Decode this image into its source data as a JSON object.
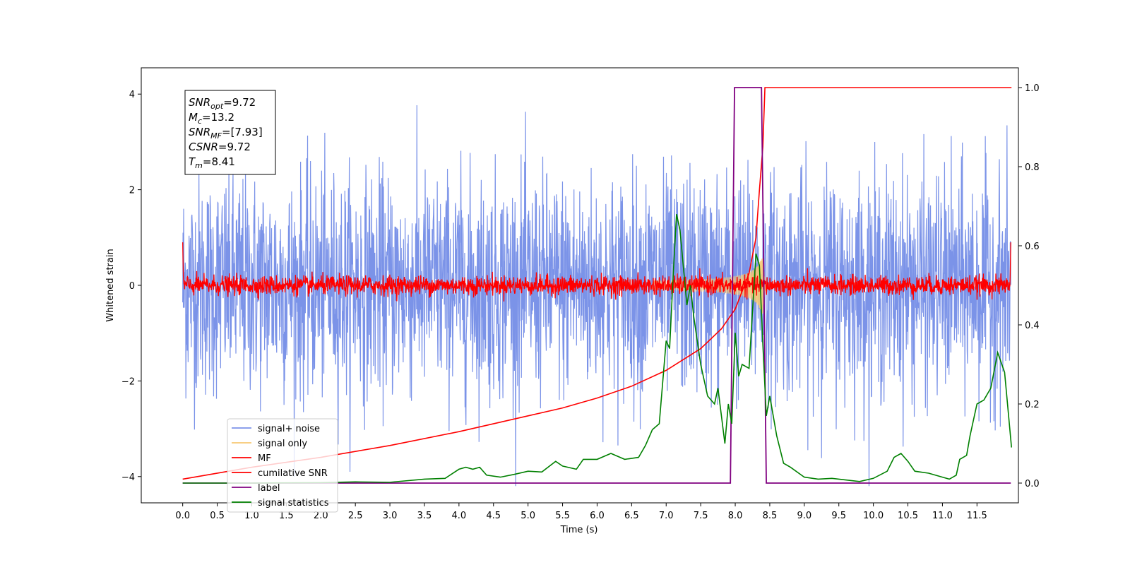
{
  "chart_data": {
    "type": "line",
    "xlabel": "Time (s)",
    "ylabel": "Whitened strain",
    "xlim": [
      -0.6,
      12.1
    ],
    "ylim": [
      -4.55,
      4.55
    ],
    "y2lim": [
      -0.05,
      1.05
    ],
    "x_ticks": [
      "0.0",
      "0.5",
      "1.0",
      "1.5",
      "2.0",
      "2.5",
      "3.0",
      "3.5",
      "4.0",
      "4.5",
      "5.0",
      "5.5",
      "6.0",
      "6.5",
      "7.0",
      "7.5",
      "8.0",
      "8.5",
      "9.0",
      "9.5",
      "10.0",
      "10.5",
      "11.0",
      "11.5"
    ],
    "y_ticks": [
      "4",
      "2",
      "0",
      "−2",
      "−4"
    ],
    "y2_ticks": [
      "1.0",
      "0.8",
      "0.6",
      "0.4",
      "0.2",
      "0.0"
    ],
    "annotation": {
      "lines": [
        {
          "var": "SNR",
          "sub": "opt",
          "value": "=9.72"
        },
        {
          "var": "M",
          "sub": "c",
          "value": "=13.2"
        },
        {
          "var": "SNR",
          "sub": "MF",
          "value": "=[7.93]"
        },
        {
          "var": "CSNR",
          "sub": "",
          "value": "=9.72"
        },
        {
          "var": "T",
          "sub": "m",
          "value": "=8.41"
        }
      ]
    },
    "legend": {
      "placement": "lower-left",
      "entries": [
        "signal+ noise",
        "signal only",
        "MF",
        "cumilative SNR",
        "label",
        "signal statistics"
      ]
    },
    "colors": {
      "signal_noise": "#7b93e8",
      "signal_only": "#f7c873",
      "mf": "#ff0000",
      "cumulative_snr": "#ff0000",
      "label": "#800080",
      "signal_statistics": "#008000"
    },
    "series": [
      {
        "name": "signal+ noise",
        "axis": "left",
        "description_range": [
          -4.2,
          4.2
        ],
        "t_start": 0.0,
        "t_end": 11.99
      },
      {
        "name": "signal only",
        "axis": "left",
        "t_peak": 8.4,
        "amplitude_peak": 0.6
      },
      {
        "name": "MF",
        "axis": "left",
        "typical_amplitude": 0.25
      },
      {
        "name": "cumilative SNR",
        "axis": "right",
        "points": [
          [
            0.0,
            0.01
          ],
          [
            1.0,
            0.04
          ],
          [
            2.0,
            0.065
          ],
          [
            3.0,
            0.095
          ],
          [
            4.0,
            0.13
          ],
          [
            5.0,
            0.17
          ],
          [
            5.5,
            0.19
          ],
          [
            6.0,
            0.215
          ],
          [
            6.5,
            0.245
          ],
          [
            7.0,
            0.285
          ],
          [
            7.5,
            0.34
          ],
          [
            7.8,
            0.39
          ],
          [
            8.0,
            0.44
          ],
          [
            8.2,
            0.53
          ],
          [
            8.3,
            0.62
          ],
          [
            8.35,
            0.74
          ],
          [
            8.4,
            0.85
          ],
          [
            8.43,
            1.0
          ],
          [
            12.0,
            1.0
          ]
        ]
      },
      {
        "name": "label",
        "axis": "right",
        "points": [
          [
            0.0,
            0.0
          ],
          [
            7.93,
            0.0
          ],
          [
            7.99,
            1.0
          ],
          [
            8.38,
            1.0
          ],
          [
            8.45,
            0.0
          ],
          [
            11.99,
            0.0
          ]
        ]
      },
      {
        "name": "signal statistics",
        "axis": "right",
        "points": [
          [
            0.0,
            0.0
          ],
          [
            1.0,
            0.0
          ],
          [
            2.0,
            0.001
          ],
          [
            2.5,
            0.003
          ],
          [
            3.0,
            0.002
          ],
          [
            3.5,
            0.01
          ],
          [
            3.8,
            0.012
          ],
          [
            4.0,
            0.035
          ],
          [
            4.1,
            0.04
          ],
          [
            4.2,
            0.035
          ],
          [
            4.3,
            0.04
          ],
          [
            4.4,
            0.02
          ],
          [
            4.6,
            0.015
          ],
          [
            4.8,
            0.022
          ],
          [
            5.0,
            0.03
          ],
          [
            5.2,
            0.028
          ],
          [
            5.4,
            0.055
          ],
          [
            5.5,
            0.043
          ],
          [
            5.7,
            0.035
          ],
          [
            5.8,
            0.06
          ],
          [
            6.0,
            0.06
          ],
          [
            6.2,
            0.075
          ],
          [
            6.4,
            0.06
          ],
          [
            6.6,
            0.065
          ],
          [
            6.7,
            0.095
          ],
          [
            6.8,
            0.135
          ],
          [
            6.9,
            0.15
          ],
          [
            7.0,
            0.36
          ],
          [
            7.05,
            0.34
          ],
          [
            7.1,
            0.52
          ],
          [
            7.15,
            0.68
          ],
          [
            7.2,
            0.64
          ],
          [
            7.3,
            0.45
          ],
          [
            7.35,
            0.5
          ],
          [
            7.4,
            0.42
          ],
          [
            7.5,
            0.3
          ],
          [
            7.6,
            0.22
          ],
          [
            7.7,
            0.2
          ],
          [
            7.75,
            0.24
          ],
          [
            7.85,
            0.1
          ],
          [
            7.9,
            0.2
          ],
          [
            7.95,
            0.15
          ],
          [
            8.0,
            0.38
          ],
          [
            8.05,
            0.27
          ],
          [
            8.1,
            0.3
          ],
          [
            8.2,
            0.29
          ],
          [
            8.3,
            0.58
          ],
          [
            8.35,
            0.55
          ],
          [
            8.4,
            0.35
          ],
          [
            8.45,
            0.17
          ],
          [
            8.5,
            0.22
          ],
          [
            8.6,
            0.12
          ],
          [
            8.7,
            0.05
          ],
          [
            8.8,
            0.04
          ],
          [
            9.0,
            0.015
          ],
          [
            9.2,
            0.01
          ],
          [
            9.4,
            0.012
          ],
          [
            9.6,
            0.008
          ],
          [
            9.8,
            0.004
          ],
          [
            10.0,
            0.012
          ],
          [
            10.2,
            0.03
          ],
          [
            10.3,
            0.065
          ],
          [
            10.4,
            0.075
          ],
          [
            10.5,
            0.055
          ],
          [
            10.6,
            0.03
          ],
          [
            10.8,
            0.025
          ],
          [
            11.0,
            0.015
          ],
          [
            11.1,
            0.01
          ],
          [
            11.2,
            0.02
          ],
          [
            11.25,
            0.06
          ],
          [
            11.35,
            0.07
          ],
          [
            11.4,
            0.12
          ],
          [
            11.5,
            0.2
          ],
          [
            11.6,
            0.21
          ],
          [
            11.7,
            0.24
          ],
          [
            11.8,
            0.33
          ],
          [
            11.9,
            0.28
          ],
          [
            12.0,
            0.09
          ]
        ]
      }
    ]
  }
}
